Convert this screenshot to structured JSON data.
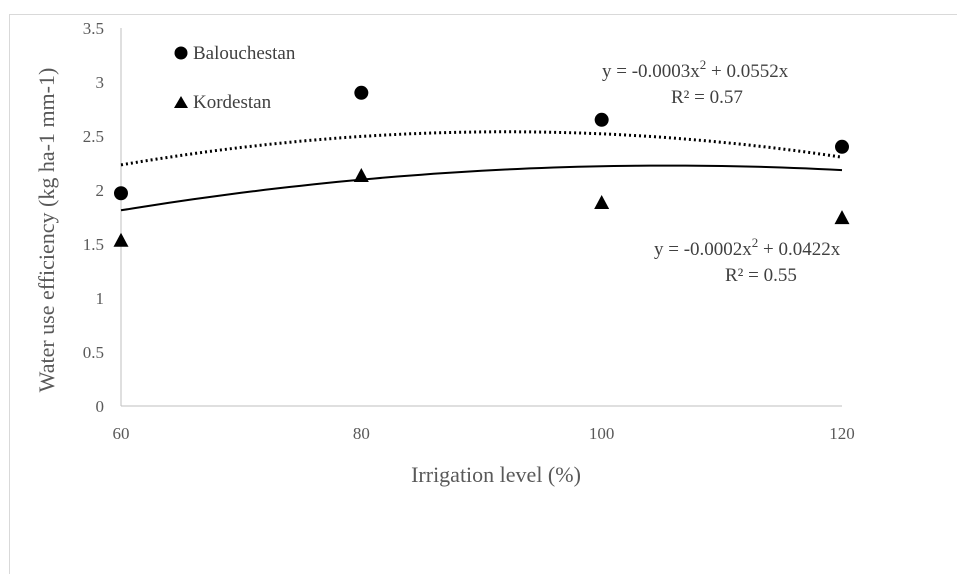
{
  "chart_data": {
    "type": "scatter",
    "xlabel": "Irrigation level (%)",
    "ylabel": "Water use efficiency (kg ha-1 mm-1)",
    "xlim": [
      60,
      120
    ],
    "ylim": [
      0,
      3.5
    ],
    "x_ticks": [
      "60",
      "80",
      "100",
      "120"
    ],
    "y_ticks": [
      "0",
      "0.5",
      "1",
      "1.5",
      "2",
      "2.5",
      "3",
      "3.5"
    ],
    "grid": false,
    "legend_position": "top-left",
    "series": [
      {
        "name": "Balouchestan",
        "marker": "circle",
        "x": [
          60,
          80,
          100,
          120
        ],
        "y": [
          1.97,
          2.9,
          2.65,
          2.4
        ],
        "trendline": {
          "style": "dotted",
          "a": -0.0003,
          "b": 0.0552,
          "equation_main": "y = -0.0003x",
          "equation_sup": "2",
          "equation_tail": " + 0.0552x",
          "r2_label": "R² = 0.57"
        }
      },
      {
        "name": "Kordestan",
        "marker": "triangle",
        "x": [
          60,
          80,
          100,
          120
        ],
        "y": [
          1.53,
          2.13,
          1.88,
          1.74
        ],
        "trendline": {
          "style": "solid",
          "a": -0.0002,
          "b": 0.0422,
          "equation_main": "y = -0.0002x",
          "equation_sup": "2",
          "equation_tail": " + 0.0422x",
          "r2_label": "R² = 0.55"
        }
      }
    ],
    "colors": {
      "marker": "#000000",
      "axis": "#bfbfbf",
      "text": "#595959"
    }
  }
}
